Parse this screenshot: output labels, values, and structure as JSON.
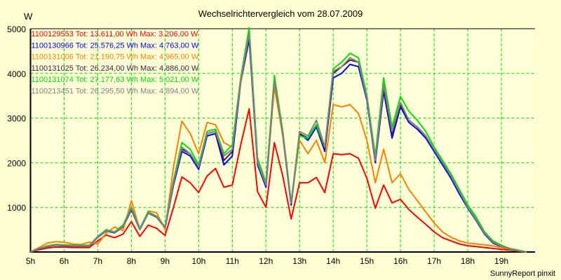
{
  "chart_data": {
    "type": "line",
    "title": "Wechselrichtervergleich vom 28.07.2009",
    "ylabel": "W",
    "xlabel": "",
    "footer": "SunnyReport pinxit",
    "xlim": [
      5,
      20
    ],
    "ylim": [
      0,
      5000
    ],
    "grid": true,
    "legend_placement": "top-left",
    "x_tick_labels": [
      "5h",
      "6h",
      "7h",
      "8h",
      "9h",
      "10h",
      "11h",
      "12h",
      "13h",
      "14h",
      "15h",
      "16h",
      "17h",
      "18h",
      "19h"
    ],
    "y_tick_values": [
      1000,
      2000,
      3000,
      4000,
      5000
    ],
    "y_tick_labels": [
      "1000",
      "2000",
      "3000",
      "4000",
      "5000"
    ],
    "x": [
      5,
      5.25,
      5.5,
      5.75,
      6,
      6.25,
      6.5,
      6.75,
      7,
      7.25,
      7.5,
      7.75,
      8,
      8.25,
      8.5,
      8.75,
      9,
      9.25,
      9.5,
      9.75,
      10,
      10.25,
      10.5,
      10.75,
      11,
      11.25,
      11.5,
      11.75,
      12,
      12.25,
      12.5,
      12.75,
      13,
      13.25,
      13.5,
      13.75,
      14,
      14.25,
      14.5,
      14.75,
      15,
      15.25,
      15.5,
      15.75,
      16,
      16.25,
      16.5,
      16.75,
      17,
      17.25,
      17.5,
      17.75,
      18,
      18.25,
      18.5,
      18.75,
      19,
      19.25,
      19.5,
      19.75
    ],
    "series": [
      {
        "name": "1100129553",
        "legend": "1100129553 Tot: 13.611,00 Wh Max: 3.206,00 W",
        "color": "#ff0000",
        "values": [
          0,
          50,
          90,
          110,
          110,
          100,
          100,
          100,
          250,
          380,
          320,
          400,
          680,
          350,
          600,
          530,
          370,
          1000,
          1680,
          1550,
          1330,
          1700,
          1870,
          1450,
          1500,
          2400,
          3206,
          1350,
          1000,
          2450,
          1700,
          740,
          1550,
          1550,
          1670,
          1330,
          2200,
          2180,
          2200,
          2100,
          1650,
          980,
          1500,
          1100,
          1180,
          950,
          780,
          620,
          450,
          320,
          250,
          180,
          140,
          120,
          100,
          80,
          60,
          40,
          20,
          0
        ]
      },
      {
        "name": "1100130966",
        "legend": "1100130966 Tot: 25.576,25 Wh Max: 4.763,00 W",
        "color": "#0000ff",
        "values": [
          0,
          70,
          120,
          150,
          140,
          130,
          130,
          130,
          330,
          470,
          430,
          560,
          950,
          500,
          870,
          780,
          540,
          1500,
          2250,
          2150,
          1850,
          2600,
          2650,
          1950,
          2150,
          3800,
          4763,
          1950,
          1450,
          3800,
          2600,
          1050,
          2650,
          2500,
          2800,
          2250,
          3900,
          4000,
          4200,
          4150,
          3400,
          2000,
          3600,
          2550,
          3250,
          2900,
          2750,
          2550,
          2250,
          1950,
          1650,
          1300,
          980,
          700,
          400,
          200,
          120,
          60,
          30,
          0
        ]
      },
      {
        "name": "1100131006",
        "legend": "1100131006 Tot: 21.190,75 Wh Max: 4.965,00 W",
        "color": "#ff8000",
        "values": [
          0,
          100,
          200,
          230,
          220,
          180,
          170,
          220,
          180,
          420,
          560,
          480,
          1150,
          500,
          920,
          880,
          500,
          1900,
          2930,
          2650,
          2200,
          2900,
          2850,
          2450,
          2350,
          3800,
          4900,
          2000,
          1500,
          3700,
          2600,
          1100,
          2500,
          2200,
          2500,
          2000,
          3300,
          3250,
          3300,
          3100,
          2500,
          1550,
          2300,
          1550,
          1750,
          1400,
          1150,
          900,
          650,
          450,
          330,
          250,
          200,
          180,
          160,
          140,
          100,
          60,
          30,
          0
        ]
      },
      {
        "name": "1100131025",
        "legend": "1100131025 Tot: 26.234,00 Wh Max: 4.886,00 W",
        "color": "#402040",
        "values": [
          0,
          75,
          125,
          155,
          145,
          135,
          135,
          135,
          340,
          480,
          440,
          570,
          970,
          510,
          880,
          790,
          550,
          1550,
          2300,
          2200,
          1900,
          2650,
          2700,
          2050,
          2250,
          3850,
          4850,
          2000,
          1500,
          3850,
          2650,
          1080,
          2650,
          2550,
          2850,
          2300,
          4000,
          4150,
          4300,
          4250,
          3450,
          2050,
          3700,
          2650,
          3300,
          2950,
          2800,
          2600,
          2300,
          2000,
          1700,
          1350,
          1000,
          720,
          420,
          220,
          130,
          70,
          30,
          0
        ]
      },
      {
        "name": "1100131074",
        "legend": "1100131074 Tot: 27.177,63 Wh Max: 5.021,00 W",
        "color": "#00e000",
        "values": [
          0,
          80,
          140,
          170,
          160,
          150,
          150,
          150,
          350,
          500,
          450,
          600,
          1000,
          530,
          900,
          800,
          560,
          1600,
          2450,
          2300,
          1950,
          2700,
          2750,
          2200,
          2400,
          3900,
          5021,
          2100,
          1550,
          3950,
          2700,
          1100,
          2600,
          2550,
          2850,
          2350,
          4100,
          4250,
          4450,
          4350,
          3500,
          2150,
          3900,
          2800,
          3480,
          3150,
          2950,
          2700,
          2350,
          2050,
          1750,
          1400,
          1050,
          780,
          450,
          250,
          150,
          80,
          40,
          0
        ]
      },
      {
        "name": "1100213451",
        "legend": "1100213451 Tot: 26.295,50 Wh Max: 4.894,00 W",
        "color": "#808080",
        "values": [
          0,
          75,
          125,
          155,
          145,
          135,
          135,
          135,
          340,
          480,
          440,
          570,
          980,
          510,
          880,
          790,
          550,
          1550,
          2350,
          2200,
          1900,
          2650,
          2700,
          2150,
          2300,
          3850,
          4894,
          2000,
          1500,
          3850,
          2650,
          1100,
          2700,
          2600,
          2950,
          2350,
          4050,
          4150,
          4350,
          4250,
          3450,
          2050,
          3750,
          2700,
          3350,
          2950,
          2800,
          2600,
          2300,
          2000,
          1700,
          1350,
          1000,
          720,
          420,
          220,
          130,
          70,
          30,
          0
        ]
      }
    ]
  }
}
